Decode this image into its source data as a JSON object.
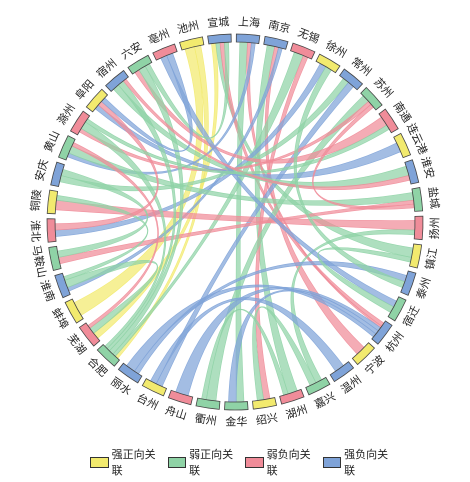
{
  "colors": {
    "strong_pos": "#f2ea6e",
    "weak_pos": "#8fd3a6",
    "weak_neg": "#f08c99",
    "strong_neg": "#7fa3d8"
  },
  "legend": [
    {
      "key": "strong_pos",
      "label": "强正向关联"
    },
    {
      "key": "weak_pos",
      "label": "弱正向关联"
    },
    {
      "key": "weak_neg",
      "label": "弱负向关联"
    },
    {
      "key": "strong_neg",
      "label": "强负向关联"
    }
  ],
  "cities": [
    {
      "name": "上海",
      "type": "strong_neg"
    },
    {
      "name": "南京",
      "type": "strong_neg"
    },
    {
      "name": "无锡",
      "type": "weak_neg"
    },
    {
      "name": "徐州",
      "type": "strong_pos"
    },
    {
      "name": "常州",
      "type": "strong_neg"
    },
    {
      "name": "苏州",
      "type": "weak_pos"
    },
    {
      "name": "南通",
      "type": "weak_neg"
    },
    {
      "name": "连云港",
      "type": "strong_pos"
    },
    {
      "name": "淮安",
      "type": "strong_neg"
    },
    {
      "name": "盐城",
      "type": "weak_pos"
    },
    {
      "name": "扬州",
      "type": "weak_neg"
    },
    {
      "name": "镇江",
      "type": "strong_pos"
    },
    {
      "name": "泰州",
      "type": "strong_neg"
    },
    {
      "name": "宿迁",
      "type": "weak_pos"
    },
    {
      "name": "杭州",
      "type": "strong_neg"
    },
    {
      "name": "宁波",
      "type": "strong_pos"
    },
    {
      "name": "温州",
      "type": "strong_neg"
    },
    {
      "name": "嘉兴",
      "type": "weak_pos"
    },
    {
      "name": "湖州",
      "type": "weak_neg"
    },
    {
      "name": "绍兴",
      "type": "strong_pos"
    },
    {
      "name": "金华",
      "type": "weak_pos"
    },
    {
      "name": "衢州",
      "type": "weak_pos"
    },
    {
      "name": "舟山",
      "type": "weak_neg"
    },
    {
      "name": "台州",
      "type": "strong_pos"
    },
    {
      "name": "丽水",
      "type": "strong_neg"
    },
    {
      "name": "合肥",
      "type": "weak_pos"
    },
    {
      "name": "芜湖",
      "type": "weak_neg"
    },
    {
      "name": "蚌埠",
      "type": "strong_pos"
    },
    {
      "name": "淮南",
      "type": "strong_neg"
    },
    {
      "name": "马鞍山",
      "type": "weak_pos"
    },
    {
      "name": "淮北",
      "type": "weak_neg"
    },
    {
      "name": "铜陵",
      "type": "strong_pos"
    },
    {
      "name": "安庆",
      "type": "strong_neg"
    },
    {
      "name": "黄山",
      "type": "weak_pos"
    },
    {
      "name": "滁州",
      "type": "weak_neg"
    },
    {
      "name": "阜阳",
      "type": "strong_pos"
    },
    {
      "name": "宿州",
      "type": "strong_neg"
    },
    {
      "name": "六安",
      "type": "weak_pos"
    },
    {
      "name": "亳州",
      "type": "weak_neg"
    },
    {
      "name": "池州",
      "type": "strong_pos"
    },
    {
      "name": "宣城",
      "type": "strong_neg"
    }
  ],
  "links": [
    {
      "s": 39,
      "t": 27,
      "type": "strong_pos",
      "w": 3
    },
    {
      "s": 39,
      "t": 25,
      "type": "strong_pos",
      "w": 2
    },
    {
      "s": 40,
      "t": 26,
      "type": "strong_pos",
      "w": 2
    },
    {
      "s": 40,
      "t": 11,
      "type": "weak_pos",
      "w": 2
    },
    {
      "s": 40,
      "t": 14,
      "type": "weak_neg",
      "w": 2
    },
    {
      "s": 0,
      "t": 20,
      "type": "weak_pos",
      "w": 2
    },
    {
      "s": 0,
      "t": 14,
      "type": "weak_neg",
      "w": 1
    },
    {
      "s": 0,
      "t": 33,
      "type": "strong_neg",
      "w": 1
    },
    {
      "s": 1,
      "t": 18,
      "type": "weak_pos",
      "w": 2
    },
    {
      "s": 1,
      "t": 15,
      "type": "weak_neg",
      "w": 1
    },
    {
      "s": 1,
      "t": 28,
      "type": "strong_neg",
      "w": 1
    },
    {
      "s": 2,
      "t": 25,
      "type": "weak_pos",
      "w": 2
    },
    {
      "s": 2,
      "t": 19,
      "type": "weak_neg",
      "w": 1
    },
    {
      "s": 3,
      "t": 30,
      "type": "strong_neg",
      "w": 1
    },
    {
      "s": 4,
      "t": 32,
      "type": "weak_pos",
      "w": 1
    },
    {
      "s": 4,
      "t": 23,
      "type": "strong_neg",
      "w": 1
    },
    {
      "s": 5,
      "t": 21,
      "type": "weak_pos",
      "w": 2
    },
    {
      "s": 5,
      "t": 34,
      "type": "weak_neg",
      "w": 1
    },
    {
      "s": 6,
      "t": 37,
      "type": "weak_neg",
      "w": 2
    },
    {
      "s": 7,
      "t": 35,
      "type": "strong_neg",
      "w": 1
    },
    {
      "s": 8,
      "t": 36,
      "type": "weak_pos",
      "w": 2
    },
    {
      "s": 9,
      "t": 33,
      "type": "weak_pos",
      "w": 2
    },
    {
      "s": 9,
      "t": 29,
      "type": "weak_neg",
      "w": 1
    },
    {
      "s": 10,
      "t": 31,
      "type": "weak_neg",
      "w": 2
    },
    {
      "s": 10,
      "t": 17,
      "type": "weak_pos",
      "w": 1
    },
    {
      "s": 12,
      "t": 24,
      "type": "strong_neg",
      "w": 1
    },
    {
      "s": 13,
      "t": 38,
      "type": "strong_neg",
      "w": 1
    },
    {
      "s": 14,
      "t": 22,
      "type": "strong_neg",
      "w": 2
    },
    {
      "s": 14,
      "t": 20,
      "type": "strong_neg",
      "w": 2
    },
    {
      "s": 14,
      "t": 24,
      "type": "strong_neg",
      "w": 2
    },
    {
      "s": 16,
      "t": 23,
      "type": "strong_neg",
      "w": 1
    },
    {
      "s": 17,
      "t": 19,
      "type": "weak_pos",
      "w": 1
    },
    {
      "s": 18,
      "t": 21,
      "type": "weak_pos",
      "w": 1
    },
    {
      "s": 25,
      "t": 37,
      "type": "weak_pos",
      "w": 3
    },
    {
      "s": 25,
      "t": 36,
      "type": "weak_pos",
      "w": 2
    },
    {
      "s": 25,
      "t": 34,
      "type": "weak_pos",
      "w": 2
    },
    {
      "s": 26,
      "t": 28,
      "type": "weak_pos",
      "w": 2
    },
    {
      "s": 26,
      "t": 33,
      "type": "weak_neg",
      "w": 1
    },
    {
      "s": 28,
      "t": 31,
      "type": "weak_pos",
      "w": 1
    },
    {
      "s": 29,
      "t": 32,
      "type": "weak_pos",
      "w": 1
    },
    {
      "s": 30,
      "t": 35,
      "type": "weak_neg",
      "w": 1
    },
    {
      "s": 37,
      "t": 40,
      "type": "weak_pos",
      "w": 2
    },
    {
      "s": 38,
      "t": 35,
      "type": "strong_neg",
      "w": 1
    },
    {
      "s": 36,
      "t": 8,
      "type": "weak_neg",
      "w": 1
    },
    {
      "s": 34,
      "t": 6,
      "type": "weak_pos",
      "w": 1
    },
    {
      "s": 12,
      "t": 3,
      "type": "weak_pos",
      "w": 1
    },
    {
      "s": 9,
      "t": 5,
      "type": "weak_neg",
      "w": 1
    },
    {
      "s": 11,
      "t": 13,
      "type": "weak_pos",
      "w": 1
    }
  ]
}
